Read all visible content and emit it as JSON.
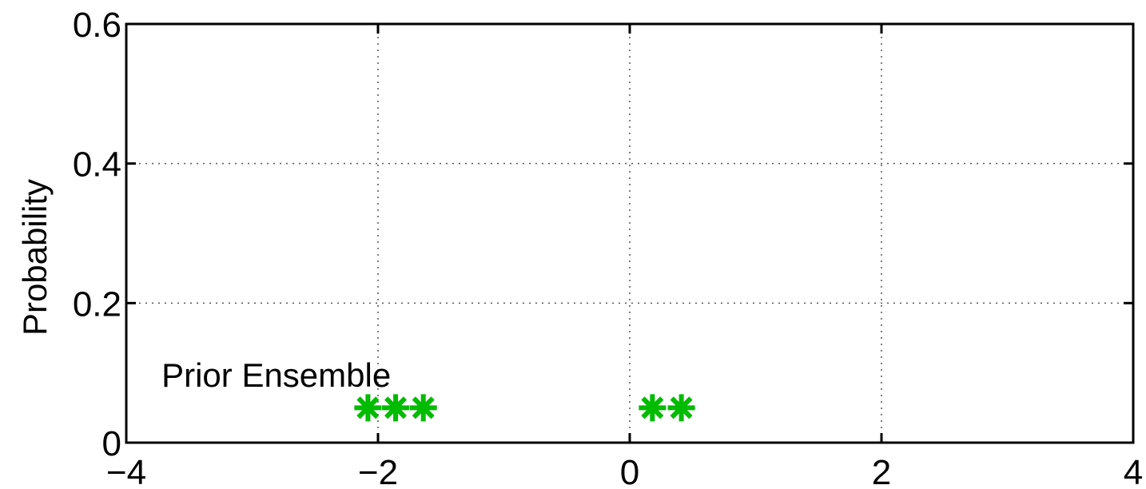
{
  "chart_data": {
    "type": "scatter",
    "title": "",
    "xlabel": "",
    "ylabel": "Probability",
    "xlim": [
      -4,
      4
    ],
    "ylim": [
      0,
      0.6
    ],
    "xticks": [
      -4,
      -2,
      0,
      2,
      4
    ],
    "yticks": [
      0,
      0.2,
      0.4,
      0.6
    ],
    "xtick_labels": [
      "−4",
      "−2",
      "0",
      "2",
      "4"
    ],
    "ytick_labels": [
      "0",
      "0.2",
      "0.4",
      "0.6"
    ],
    "grid": true,
    "annotation": {
      "text": "Prior Ensemble",
      "x": -3.72,
      "y": 0.08
    },
    "series": [
      {
        "marker": "asterisk",
        "color": "#00bb00",
        "points": [
          {
            "x": -2.08,
            "y": 0.05
          },
          {
            "x": -1.86,
            "y": 0.05
          },
          {
            "x": -1.64,
            "y": 0.05
          },
          {
            "x": 0.18,
            "y": 0.05
          },
          {
            "x": 0.41,
            "y": 0.05
          }
        ]
      }
    ]
  }
}
